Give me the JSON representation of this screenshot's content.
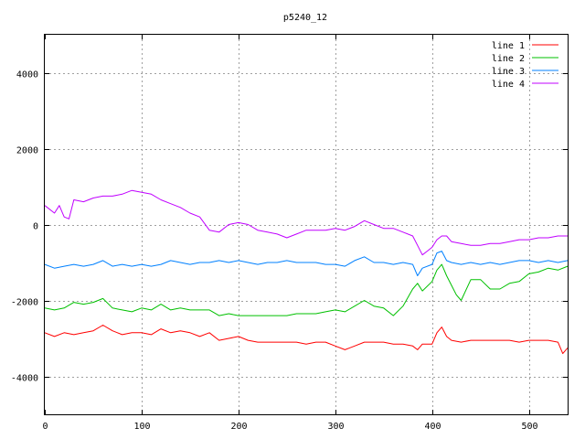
{
  "chart_data": {
    "type": "line",
    "title": "p5240_12",
    "xlabel": "",
    "ylabel": "",
    "xlim": [
      0,
      540
    ],
    "ylim": [
      -5000,
      5000
    ],
    "xticks": [
      0,
      100,
      200,
      300,
      400,
      500
    ],
    "yticks": [
      -4000,
      -2000,
      0,
      2000,
      4000
    ],
    "grid": true,
    "legend_position": "top-right",
    "series": [
      {
        "name": "line 1",
        "color": "#ff0000",
        "x": [
          0,
          10,
          20,
          30,
          40,
          50,
          60,
          70,
          80,
          90,
          100,
          110,
          120,
          130,
          140,
          150,
          160,
          170,
          180,
          190,
          200,
          210,
          220,
          230,
          240,
          250,
          260,
          270,
          280,
          290,
          300,
          310,
          320,
          330,
          340,
          350,
          360,
          370,
          380,
          385,
          390,
          400,
          405,
          410,
          415,
          420,
          430,
          440,
          450,
          460,
          470,
          480,
          490,
          500,
          510,
          520,
          530,
          535,
          540
        ],
        "y": [
          -2850,
          -2950,
          -2850,
          -2900,
          -2850,
          -2800,
          -2650,
          -2800,
          -2900,
          -2850,
          -2850,
          -2900,
          -2750,
          -2850,
          -2800,
          -2850,
          -2950,
          -2850,
          -3050,
          -3000,
          -2950,
          -3050,
          -3100,
          -3100,
          -3100,
          -3100,
          -3100,
          -3150,
          -3100,
          -3100,
          -3200,
          -3300,
          -3200,
          -3100,
          -3100,
          -3100,
          -3150,
          -3150,
          -3200,
          -3300,
          -3150,
          -3150,
          -2850,
          -2700,
          -2950,
          -3050,
          -3100,
          -3050,
          -3050,
          -3050,
          -3050,
          -3050,
          -3100,
          -3050,
          -3050,
          -3050,
          -3100,
          -3400,
          -3250
        ]
      },
      {
        "name": "line 2",
        "color": "#00c000",
        "x": [
          0,
          10,
          20,
          30,
          40,
          50,
          60,
          70,
          80,
          90,
          100,
          110,
          120,
          130,
          140,
          150,
          160,
          170,
          180,
          190,
          200,
          210,
          220,
          230,
          240,
          250,
          260,
          270,
          280,
          290,
          300,
          310,
          320,
          330,
          340,
          350,
          360,
          370,
          380,
          385,
          390,
          400,
          405,
          410,
          415,
          420,
          425,
          430,
          440,
          450,
          460,
          470,
          480,
          490,
          500,
          510,
          520,
          530,
          540
        ],
        "y": [
          -2200,
          -2250,
          -2200,
          -2050,
          -2100,
          -2050,
          -1950,
          -2200,
          -2250,
          -2300,
          -2200,
          -2250,
          -2100,
          -2250,
          -2200,
          -2250,
          -2250,
          -2250,
          -2400,
          -2350,
          -2400,
          -2400,
          -2400,
          -2400,
          -2400,
          -2400,
          -2350,
          -2350,
          -2350,
          -2300,
          -2250,
          -2300,
          -2150,
          -2000,
          -2150,
          -2200,
          -2400,
          -2150,
          -1700,
          -1550,
          -1750,
          -1500,
          -1200,
          -1050,
          -1350,
          -1600,
          -1850,
          -2000,
          -1450,
          -1450,
          -1700,
          -1700,
          -1550,
          -1500,
          -1300,
          -1250,
          -1150,
          -1200,
          -1100
        ]
      },
      {
        "name": "line 3",
        "color": "#0080ff",
        "x": [
          0,
          10,
          20,
          30,
          40,
          50,
          60,
          70,
          80,
          90,
          100,
          110,
          120,
          130,
          140,
          150,
          160,
          170,
          180,
          190,
          200,
          210,
          220,
          230,
          240,
          250,
          260,
          270,
          280,
          290,
          300,
          310,
          320,
          330,
          340,
          350,
          360,
          370,
          380,
          385,
          390,
          400,
          405,
          410,
          415,
          420,
          430,
          440,
          450,
          460,
          470,
          480,
          490,
          500,
          510,
          520,
          530,
          540
        ],
        "y": [
          -1050,
          -1150,
          -1100,
          -1050,
          -1100,
          -1050,
          -950,
          -1100,
          -1050,
          -1100,
          -1050,
          -1100,
          -1050,
          -950,
          -1000,
          -1050,
          -1000,
          -1000,
          -950,
          -1000,
          -950,
          -1000,
          -1050,
          -1000,
          -1000,
          -950,
          -1000,
          -1000,
          -1000,
          -1050,
          -1050,
          -1100,
          -950,
          -850,
          -1000,
          -1000,
          -1050,
          -1000,
          -1050,
          -1350,
          -1150,
          -1050,
          -750,
          -700,
          -950,
          -1000,
          -1050,
          -1000,
          -1050,
          -1000,
          -1050,
          -1000,
          -950,
          -950,
          -1000,
          -950,
          -1000,
          -950
        ]
      },
      {
        "name": "line 4",
        "color": "#c000ff",
        "x": [
          0,
          10,
          15,
          20,
          25,
          30,
          40,
          50,
          60,
          70,
          80,
          90,
          100,
          110,
          120,
          130,
          140,
          150,
          160,
          170,
          180,
          190,
          200,
          210,
          220,
          230,
          240,
          250,
          260,
          270,
          280,
          290,
          300,
          310,
          320,
          330,
          340,
          350,
          360,
          370,
          380,
          385,
          390,
          395,
          400,
          405,
          410,
          415,
          420,
          430,
          440,
          450,
          460,
          470,
          480,
          490,
          500,
          510,
          520,
          530,
          540
        ],
        "y": [
          500,
          300,
          500,
          200,
          150,
          650,
          600,
          700,
          750,
          750,
          800,
          900,
          850,
          800,
          650,
          550,
          450,
          300,
          200,
          -150,
          -200,
          0,
          50,
          0,
          -150,
          -200,
          -250,
          -350,
          -250,
          -150,
          -150,
          -150,
          -100,
          -150,
          -50,
          100,
          0,
          -100,
          -100,
          -200,
          -300,
          -550,
          -800,
          -700,
          -600,
          -400,
          -300,
          -300,
          -450,
          -500,
          -550,
          -550,
          -500,
          -500,
          -450,
          -400,
          -400,
          -350,
          -350,
          -300,
          -300
        ]
      }
    ]
  }
}
